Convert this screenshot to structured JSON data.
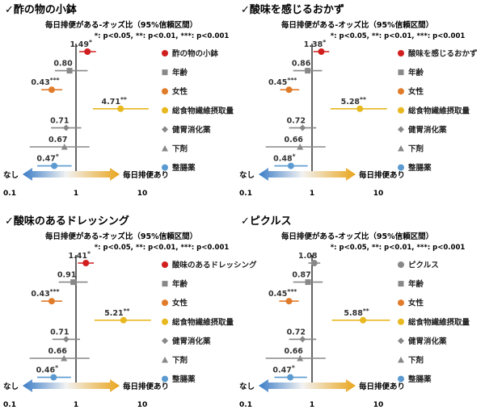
{
  "colors": {
    "red": "#d11f1f",
    "gray": "#888888",
    "orange": "#e07b2a",
    "yellow": "#e8b820",
    "blue": "#5a9ad0",
    "axis": "#000000"
  },
  "icons": [
    "checkmark-icon",
    "circle-marker",
    "square-marker",
    "diamond-marker",
    "triangle-marker",
    "double-arrow-gradient"
  ],
  "chart_data": [
    {
      "type": "forest",
      "title": "✓酢の物の小鉢",
      "subtitle": "毎日排便がある-オッズ比（95%信頼区間）",
      "significance_note": "*: p<0.05, **: p<0.01, ***: p<0.001",
      "x_scale": "log",
      "xlim": [
        0.1,
        10
      ],
      "reference": 1,
      "x_ticks": [
        "0.1",
        "1",
        "10"
      ],
      "arrow_left_label": "なし",
      "arrow_right_label": "毎日排便あり",
      "rows": [
        {
          "name": "酢の物の小鉢",
          "or": 1.49,
          "lo": 1.12,
          "hi": 2.0,
          "label": "1.49",
          "sig": "*",
          "color": "red",
          "marker": "circle"
        },
        {
          "name": "年齢",
          "or": 0.8,
          "lo": 0.48,
          "hi": 1.5,
          "label": "0.80",
          "sig": "",
          "color": "gray",
          "marker": "square"
        },
        {
          "name": "女性",
          "or": 0.43,
          "lo": 0.3,
          "hi": 0.62,
          "label": "0.43",
          "sig": "***",
          "color": "orange",
          "marker": "circle"
        },
        {
          "name": "総食物繊維摂取量",
          "or": 4.71,
          "lo": 1.8,
          "hi": 12.5,
          "label": "4.71",
          "sig": "**",
          "color": "yellow",
          "marker": "circle"
        },
        {
          "name": "健胃消化薬",
          "or": 0.71,
          "lo": 0.42,
          "hi": 1.2,
          "label": "0.71",
          "sig": "",
          "color": "gray",
          "marker": "diamond"
        },
        {
          "name": "下剤",
          "or": 0.67,
          "lo": 0.2,
          "hi": 1.6,
          "label": "0.67",
          "sig": "",
          "color": "gray",
          "marker": "triangle"
        },
        {
          "name": "整腸薬",
          "or": 0.47,
          "lo": 0.26,
          "hi": 0.86,
          "label": "0.47",
          "sig": "*",
          "color": "blue",
          "marker": "circle"
        }
      ]
    },
    {
      "type": "forest",
      "title": "✓酸味を感じるおかず",
      "subtitle": "毎日排便がある-オッズ比（95%信頼区間）",
      "significance_note": "*: p<0.05, **: p<0.01, ***: p<0.001",
      "x_scale": "log",
      "xlim": [
        0.1,
        10
      ],
      "reference": 1,
      "x_ticks": [
        "0.1",
        "1",
        "10"
      ],
      "arrow_left_label": "なし",
      "arrow_right_label": "毎日排便あり",
      "rows": [
        {
          "name": "酸味を感じるおかず",
          "or": 1.38,
          "lo": 1.05,
          "hi": 1.82,
          "label": "1.38",
          "sig": "*",
          "color": "red",
          "marker": "circle"
        },
        {
          "name": "年齢",
          "or": 0.86,
          "lo": 0.52,
          "hi": 1.42,
          "label": "0.86",
          "sig": "",
          "color": "gray",
          "marker": "square"
        },
        {
          "name": "女性",
          "or": 0.45,
          "lo": 0.33,
          "hi": 0.64,
          "label": "0.45",
          "sig": "***",
          "color": "orange",
          "marker": "circle"
        },
        {
          "name": "総食物繊維摂取量",
          "or": 5.28,
          "lo": 1.9,
          "hi": 13.5,
          "label": "5.28",
          "sig": "**",
          "color": "yellow",
          "marker": "circle"
        },
        {
          "name": "健胃消化薬",
          "or": 0.72,
          "lo": 0.45,
          "hi": 1.16,
          "label": "0.72",
          "sig": "",
          "color": "gray",
          "marker": "diamond"
        },
        {
          "name": "下剤",
          "or": 0.66,
          "lo": 0.2,
          "hi": 1.6,
          "label": "0.66",
          "sig": "",
          "color": "gray",
          "marker": "triangle"
        },
        {
          "name": "整腸薬",
          "or": 0.48,
          "lo": 0.27,
          "hi": 0.86,
          "label": "0.48",
          "sig": "*",
          "color": "blue",
          "marker": "circle"
        }
      ]
    },
    {
      "type": "forest",
      "title": "✓酸味のあるドレッシング",
      "subtitle": "毎日排便がある-オッズ比（95%信頼区間）",
      "significance_note": "*: p<0.05, **: p<0.01, ***: p<0.001",
      "x_scale": "log",
      "xlim": [
        0.1,
        10
      ],
      "reference": 1,
      "x_ticks": [
        "0.1",
        "1",
        "10"
      ],
      "arrow_left_label": "なし",
      "arrow_right_label": "毎日排便あり",
      "rows": [
        {
          "name": "酸味のあるドレッシング",
          "or": 1.41,
          "lo": 1.07,
          "hi": 1.86,
          "label": "1.41",
          "sig": "*",
          "color": "red",
          "marker": "circle"
        },
        {
          "name": "年齢",
          "or": 0.91,
          "lo": 0.55,
          "hi": 1.5,
          "label": "0.91",
          "sig": "",
          "color": "gray",
          "marker": "square"
        },
        {
          "name": "女性",
          "or": 0.43,
          "lo": 0.3,
          "hi": 0.62,
          "label": "0.43",
          "sig": "***",
          "color": "orange",
          "marker": "circle"
        },
        {
          "name": "総食物繊維摂取量",
          "or": 5.21,
          "lo": 1.9,
          "hi": 13.5,
          "label": "5.21",
          "sig": "**",
          "color": "yellow",
          "marker": "circle"
        },
        {
          "name": "健胃消化薬",
          "or": 0.71,
          "lo": 0.44,
          "hi": 1.15,
          "label": "0.71",
          "sig": "",
          "color": "gray",
          "marker": "diamond"
        },
        {
          "name": "下剤",
          "or": 0.66,
          "lo": 0.2,
          "hi": 1.6,
          "label": "0.66",
          "sig": "",
          "color": "gray",
          "marker": "triangle"
        },
        {
          "name": "整腸薬",
          "or": 0.46,
          "lo": 0.26,
          "hi": 0.84,
          "label": "0.46",
          "sig": "*",
          "color": "blue",
          "marker": "circle"
        }
      ]
    },
    {
      "type": "forest",
      "title": "✓ピクルス",
      "subtitle": "毎日排便がある-オッズ比（95%信頼区間）",
      "significance_note": "*: p<0.05, **: p<0.01, ***: p<0.001",
      "x_scale": "log",
      "xlim": [
        0.1,
        10
      ],
      "reference": 1,
      "x_ticks": [
        "0.1",
        "1",
        "10"
      ],
      "arrow_left_label": "なし",
      "arrow_right_label": "毎日排便あり",
      "rows": [
        {
          "name": "ピクルス",
          "or": 1.08,
          "lo": 0.88,
          "hi": 1.33,
          "label": "1.08",
          "sig": "",
          "color": "gray",
          "marker": "circle"
        },
        {
          "name": "年齢",
          "or": 0.87,
          "lo": 0.52,
          "hi": 1.45,
          "label": "0.87",
          "sig": "",
          "color": "gray",
          "marker": "square"
        },
        {
          "name": "女性",
          "or": 0.45,
          "lo": 0.32,
          "hi": 0.63,
          "label": "0.45",
          "sig": "***",
          "color": "orange",
          "marker": "circle"
        },
        {
          "name": "総食物繊維摂取量",
          "or": 5.88,
          "lo": 2.0,
          "hi": 15.0,
          "label": "5.88",
          "sig": "**",
          "color": "yellow",
          "marker": "circle"
        },
        {
          "name": "健胃消化薬",
          "or": 0.72,
          "lo": 0.45,
          "hi": 1.16,
          "label": "0.72",
          "sig": "",
          "color": "gray",
          "marker": "diamond"
        },
        {
          "name": "下剤",
          "or": 0.66,
          "lo": 0.2,
          "hi": 1.6,
          "label": "0.66",
          "sig": "",
          "color": "gray",
          "marker": "triangle"
        },
        {
          "name": "整腸薬",
          "or": 0.47,
          "lo": 0.27,
          "hi": 0.84,
          "label": "0.47",
          "sig": "*",
          "color": "blue",
          "marker": "circle"
        }
      ]
    }
  ]
}
